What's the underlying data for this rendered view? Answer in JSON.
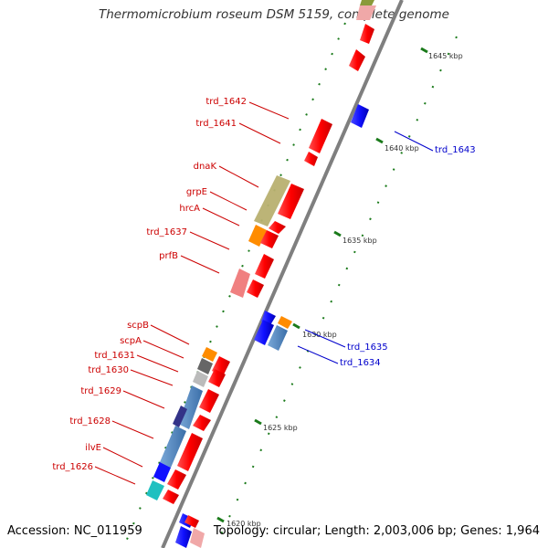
{
  "title": "Thermomicrobium roseum DSM 5159, complete genome",
  "footer": {
    "accession": "Accession: NC_011959",
    "topology": "Topology: circular; Length: 2,003,006 bp; Genes: 1,964"
  },
  "kbp_labels": [
    "1645 kbp",
    "1640 kbp",
    "1635 kbp",
    "1630 kbp",
    "1625 kbp",
    "1620 kbp"
  ],
  "genes_left": [
    "trd_1642",
    "trd_1641",
    "dnaK",
    "grpE",
    "hrcA",
    "trd_1637",
    "prfB",
    "scpB",
    "scpA",
    "trd_1631",
    "trd_1630",
    "trd_1629",
    "trd_1628",
    "ilvE",
    "trd_1626"
  ],
  "genes_right": [
    "trd_1643",
    "trd_1635",
    "trd_1634"
  ],
  "colors": {
    "forward_label": "#cc0000",
    "reverse_label": "#0000cc",
    "backbone": "#888888",
    "tick": "#1a7a1a"
  }
}
